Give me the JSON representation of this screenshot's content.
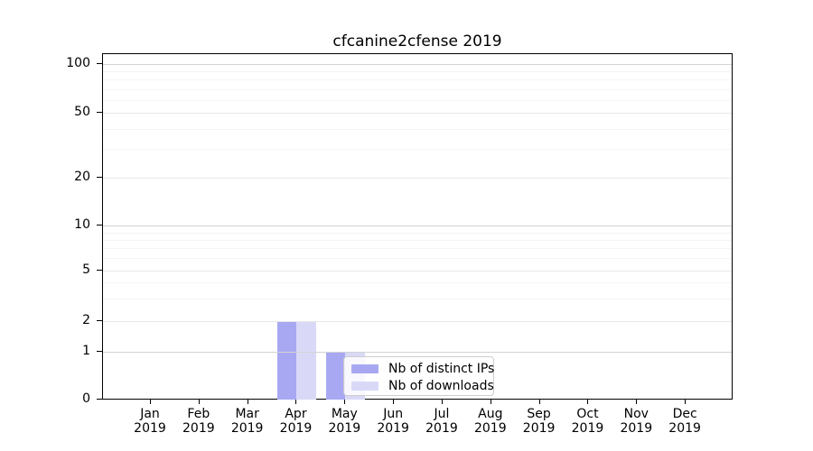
{
  "chart_data": {
    "type": "bar",
    "title": "cfcanine2cfense 2019",
    "categories": [
      "Jan",
      "Feb",
      "Mar",
      "Apr",
      "May",
      "Jun",
      "Jul",
      "Aug",
      "Sep",
      "Oct",
      "Nov",
      "Dec"
    ],
    "x_tick_year": "2019",
    "series": [
      {
        "name": "Nb of distinct IPs",
        "color": "#a8a8f2",
        "values": [
          0,
          0,
          0,
          2,
          1,
          0,
          0,
          0,
          0,
          0,
          0,
          0
        ]
      },
      {
        "name": "Nb of downloads",
        "color": "#d9d9f7",
        "values": [
          0,
          0,
          0,
          2,
          1,
          0,
          0,
          0,
          0,
          0,
          0,
          0
        ]
      }
    ],
    "y_axis": {
      "scale": "symlog",
      "ticks": [
        0,
        1,
        2,
        5,
        10,
        20,
        50,
        100
      ],
      "minor_ticks": [
        3,
        4,
        6,
        7,
        8,
        9,
        30,
        40,
        60,
        70,
        80,
        90
      ]
    },
    "legend": {
      "labels": [
        "Nb of distinct IPs",
        "Nb of downloads"
      ],
      "position": "lower-center-overlapping-plot"
    },
    "grid": "horizontal",
    "xlabel": "",
    "ylabel": ""
  }
}
